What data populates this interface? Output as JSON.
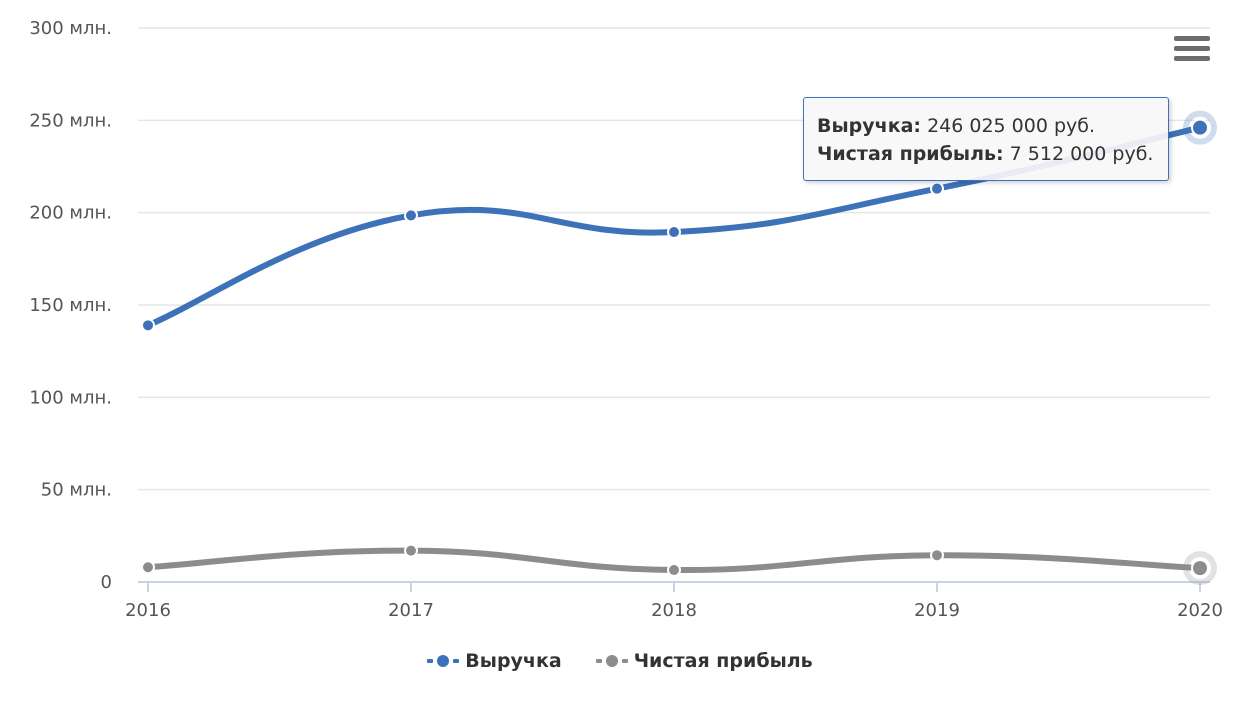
{
  "chart_data": {
    "type": "line",
    "categories": [
      "2016",
      "2017",
      "2018",
      "2019",
      "2020"
    ],
    "series": [
      {
        "name": "Выручка",
        "values": [
          139000000,
          198500000,
          189500000,
          213000000,
          246025000
        ],
        "color": "#3d72b8"
      },
      {
        "name": "Чистая прибыль",
        "values": [
          8000000,
          17000000,
          6500000,
          14500000,
          7512000
        ],
        "color": "#8c8c8c"
      }
    ],
    "ylim": [
      0,
      300000000
    ],
    "y_ticks": [
      {
        "value": 0,
        "label": "0"
      },
      {
        "value": 50000000,
        "label": "50 млн."
      },
      {
        "value": 100000000,
        "label": "100 млн."
      },
      {
        "value": 150000000,
        "label": "150 млн."
      },
      {
        "value": 200000000,
        "label": "200 млн."
      },
      {
        "value": 250000000,
        "label": "250 млн."
      },
      {
        "value": 300000000,
        "label": "300 млн."
      }
    ],
    "grid": true,
    "legend_position": "bottom-center",
    "highlighted_category": "2020"
  },
  "tooltip": {
    "revenue_label": "Выручка:",
    "revenue_value": "246 025 000 руб.",
    "profit_label": "Чистая прибыль:",
    "profit_value": "7 512 000 руб."
  },
  "legend": {
    "items": [
      {
        "label": "Выручка",
        "color": "#3d72b8"
      },
      {
        "label": "Чистая прибыль",
        "color": "#8c8c8c"
      }
    ]
  },
  "menu_icon": "hamburger-menu-icon"
}
